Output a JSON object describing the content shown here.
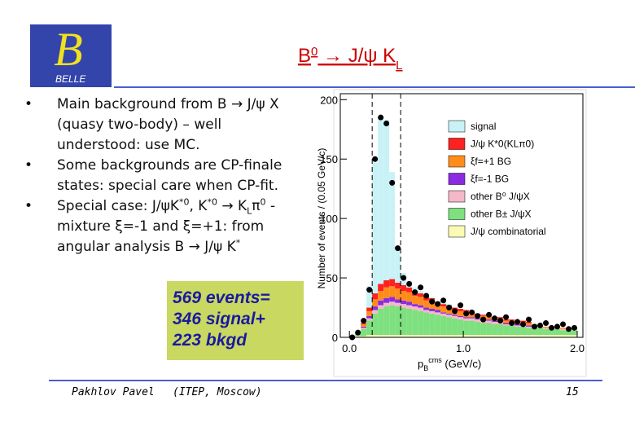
{
  "logo": {
    "letter": "B",
    "text": "BELLE"
  },
  "title": [
    {
      "t": "B"
    },
    {
      "sup": "0"
    },
    {
      "t": " → J/ψ K"
    },
    {
      "sub": "L"
    }
  ],
  "bullets": [
    [
      {
        "t": "Main background from B → J/ψ X (quasy two-body) – well understood: use MC."
      }
    ],
    [
      {
        "t": "Some backgrounds are CP-finale states: special care when CP-fit."
      }
    ],
    [
      {
        "t": "Special case: J/ψK"
      },
      {
        "sup": "*0"
      },
      {
        "t": ", K"
      },
      {
        "sup": "*0"
      },
      {
        "t": " → K"
      },
      {
        "sub": "L"
      },
      {
        "t": "π"
      },
      {
        "sup": "0"
      },
      {
        "t": " - mixture ξ=-1 and ξ=+1: from angular analysis B → J/ψ K"
      },
      {
        "sup": "*"
      }
    ]
  ],
  "callout": [
    "569 events=",
    "346 signal+",
    "223 bkgd"
  ],
  "footer": {
    "author": "Pakhlov Pavel",
    "institute": "(ITEP, Moscow)",
    "page": "15"
  },
  "chart_data": {
    "type": "stacked-histogram",
    "ylabel": "Number of events / (0.05 GeV/c)",
    "xlabel": {
      "main": "p",
      "sub": "B",
      "sup": "cms",
      "unit": " (GeV/c)"
    },
    "bins": [
      0,
      0.05,
      0.1,
      0.15,
      0.2,
      0.25,
      0.3,
      0.35,
      0.4,
      0.45,
      0.5,
      0.55,
      0.6,
      0.65,
      0.7,
      0.75,
      0.8,
      0.85,
      0.9,
      0.95,
      1.0,
      1.05,
      1.1,
      1.15,
      1.2,
      1.25,
      1.3,
      1.35,
      1.4,
      1.45,
      1.5,
      1.55,
      1.6,
      1.65,
      1.7,
      1.75,
      1.8,
      1.85,
      1.9,
      1.95,
      2.0
    ],
    "xlim": [
      -0.08,
      2.05
    ],
    "xticks": [
      {
        "value": 0,
        "label": "0.0"
      },
      {
        "value": 1,
        "label": "1.0"
      },
      {
        "value": 2,
        "label": "2.0"
      }
    ],
    "ylim": [
      0,
      205
    ],
    "yticks": [
      0,
      50,
      100,
      150,
      200
    ],
    "cut_lines": [
      0.2,
      0.45
    ],
    "series": [
      {
        "name": "signal",
        "color": "#c8f2f6",
        "values": [
          0,
          0,
          2,
          18,
          110,
          140,
          135,
          90,
          30,
          10,
          5,
          3,
          2,
          1,
          1,
          1,
          1,
          1,
          0,
          0,
          0,
          0,
          0,
          0,
          0,
          0,
          0,
          0,
          0,
          0,
          0,
          0,
          0,
          0,
          0,
          0,
          0,
          0,
          0,
          0
        ]
      },
      {
        "name": "J/ψ K*0(KLπ0)",
        "color": "#ff2020",
        "values": [
          0,
          0,
          1,
          3,
          5,
          6,
          6,
          6,
          5,
          5,
          4,
          4,
          3,
          3,
          3,
          2,
          2,
          2,
          2,
          2,
          2,
          1,
          1,
          1,
          1,
          1,
          1,
          1,
          1,
          1,
          1,
          1,
          0,
          0,
          0,
          0,
          0,
          0,
          0,
          0
        ]
      },
      {
        "name": "ξf=+1 BG",
        "color": "#ff8c1a",
        "values": [
          0,
          1,
          2,
          4,
          6,
          8,
          9,
          9,
          9,
          8,
          8,
          7,
          7,
          6,
          6,
          5,
          5,
          5,
          4,
          4,
          4,
          3,
          3,
          3,
          3,
          2,
          2,
          2,
          2,
          2,
          2,
          2,
          1,
          1,
          1,
          1,
          1,
          1,
          1,
          1
        ]
      },
      {
        "name": "ξf=-1 BG",
        "color": "#8a2be2",
        "values": [
          0,
          0,
          1,
          2,
          3,
          4,
          4,
          4,
          3,
          3,
          3,
          2,
          2,
          2,
          2,
          2,
          1,
          1,
          1,
          1,
          1,
          1,
          1,
          1,
          1,
          1,
          1,
          1,
          1,
          1,
          1,
          1,
          1,
          0,
          0,
          0,
          0,
          0,
          0,
          0
        ]
      },
      {
        "name": "other B⁰ J/ψX",
        "color": "#f4b8c8",
        "values": [
          0,
          0,
          1,
          2,
          3,
          3,
          3,
          3,
          3,
          3,
          3,
          3,
          3,
          2,
          2,
          2,
          2,
          2,
          2,
          2,
          2,
          2,
          2,
          2,
          2,
          2,
          2,
          1,
          1,
          1,
          1,
          1,
          1,
          1,
          1,
          1,
          1,
          1,
          1,
          1
        ]
      },
      {
        "name": "other B± J/ψX",
        "color": "#7ee07e",
        "values": [
          0,
          2,
          6,
          12,
          18,
          22,
          24,
          25,
          24,
          23,
          22,
          21,
          20,
          19,
          18,
          17,
          16,
          15,
          14,
          13,
          12,
          12,
          11,
          10,
          10,
          9,
          9,
          8,
          8,
          7,
          7,
          6,
          6,
          6,
          5,
          5,
          5,
          4,
          4,
          4
        ]
      },
      {
        "name": "J/ψ combinatorial",
        "color": "#fafab4",
        "values": [
          0,
          1,
          1,
          2,
          2,
          2,
          2,
          2,
          2,
          2,
          2,
          2,
          2,
          2,
          2,
          2,
          2,
          2,
          2,
          2,
          2,
          2,
          2,
          2,
          2,
          2,
          2,
          2,
          2,
          2,
          2,
          2,
          2,
          2,
          2,
          2,
          2,
          2,
          2,
          2
        ]
      }
    ],
    "data_points": [
      0,
      4,
      14,
      40,
      150,
      185,
      180,
      130,
      75,
      50,
      45,
      38,
      42,
      35,
      30,
      28,
      31,
      25,
      22,
      27,
      20,
      21,
      18,
      15,
      19,
      16,
      14,
      17,
      12,
      13,
      11,
      15,
      9,
      10,
      12,
      8,
      9,
      11,
      7,
      8
    ]
  }
}
